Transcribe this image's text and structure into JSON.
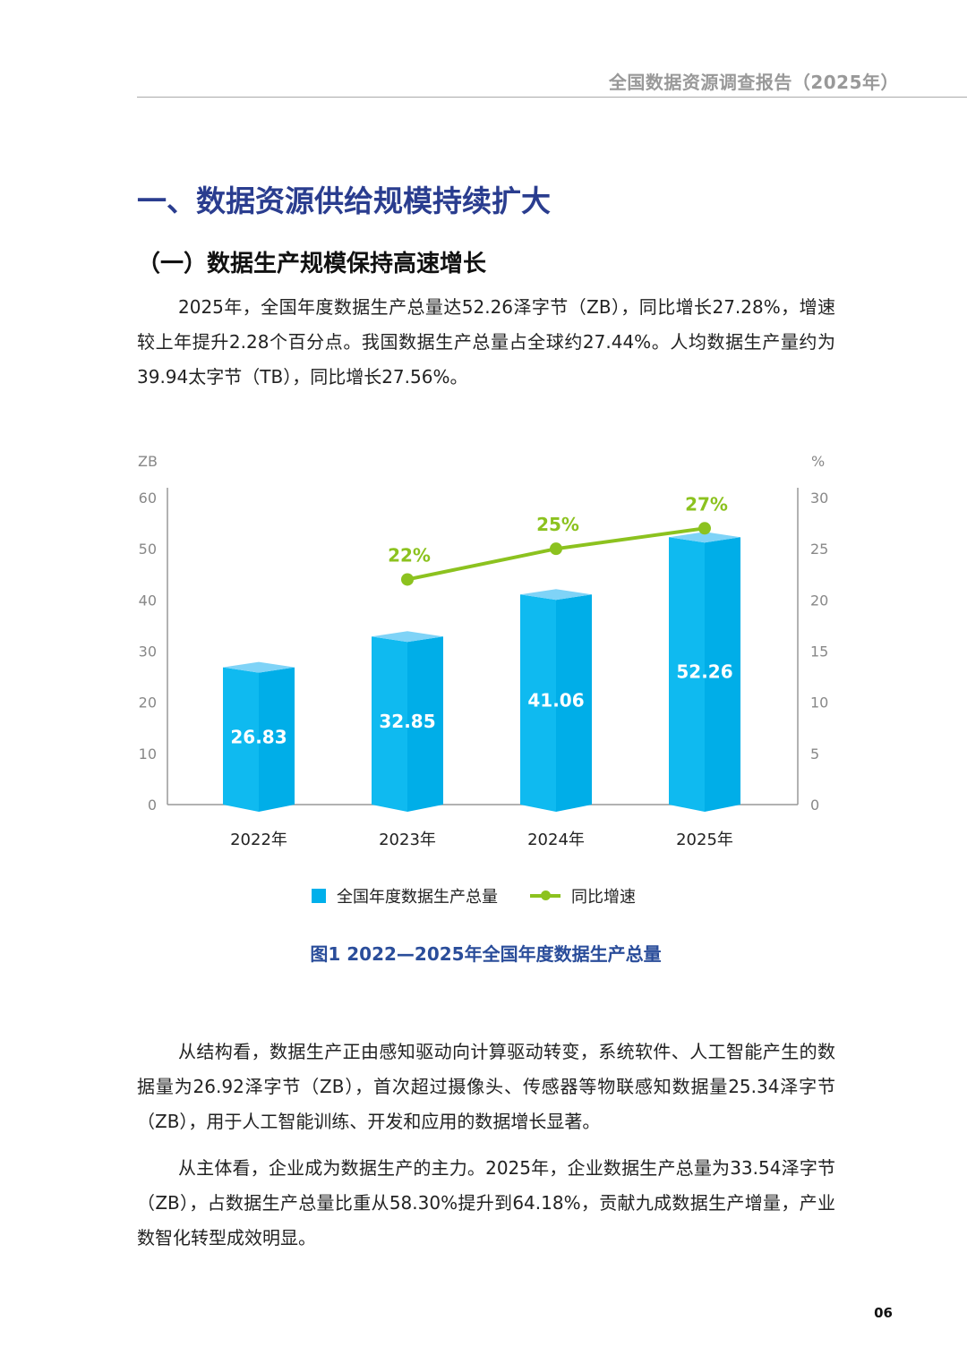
{
  "header": {
    "running_title": "全国数据资源调查报告（2025年）"
  },
  "section_title": "一、数据资源供给规模持续扩大",
  "subsection_title": "（一）数据生产规模保持高速增长",
  "paragraphs": [
    "2025年，全国年度数据生产总量达52.26泽字节（ZB），同比增长27.28%，增速较上年提升2.28个百分点。我国数据生产总量占全球约27.44%。人均数据生产量约为39.94太字节（TB），同比增长27.56%。",
    "从结构看，数据生产正由感知驱动向计算驱动转变，系统软件、人工智能产生的数据量为26.92泽字节（ZB），首次超过摄像头、传感器等物联感知数据量25.34泽字节（ZB），用于人工智能训练、开发和应用的数据增长显著。",
    "从主体看，企业成为数据生产的主力。2025年，企业数据生产总量为33.54泽字节（ZB），占数据生产总量比重从58.30%提升到64.18%，贡献九成数据生产增量，产业数智化转型成效明显。"
  ],
  "chart_data": {
    "type": "bar+line",
    "categories": [
      "2022年",
      "2023年",
      "2024年",
      "2025年"
    ],
    "left_axis": {
      "unit": "ZB",
      "ylim": [
        0,
        60
      ],
      "ticks": [
        "0",
        "10",
        "20",
        "30",
        "40",
        "50",
        "60"
      ]
    },
    "right_axis": {
      "unit": "%",
      "ylim": [
        0,
        30
      ],
      "ticks": [
        "0",
        "5",
        "10",
        "15",
        "20",
        "25",
        "30"
      ]
    },
    "series": [
      {
        "name": "全国年度数据生产总量",
        "type": "bar",
        "axis": "left",
        "values": [
          26.83,
          32.85,
          41.06,
          52.26
        ],
        "labels": [
          "26.83",
          "32.85",
          "41.06",
          "52.26"
        ],
        "color": "#00b0eb"
      },
      {
        "name": "同比增速",
        "type": "line",
        "axis": "right",
        "values": [
          null,
          22,
          25,
          27
        ],
        "labels": [
          "",
          "22%",
          "25%",
          "27%"
        ],
        "color": "#8cc21f"
      }
    ],
    "grid": false,
    "legend_position": "bottom"
  },
  "legend": {
    "bar_label": "全国年度数据生产总量",
    "line_label": "同比增速"
  },
  "figure_caption": "图1 2022—2025年全国年度数据生产总量",
  "page_number": "06"
}
